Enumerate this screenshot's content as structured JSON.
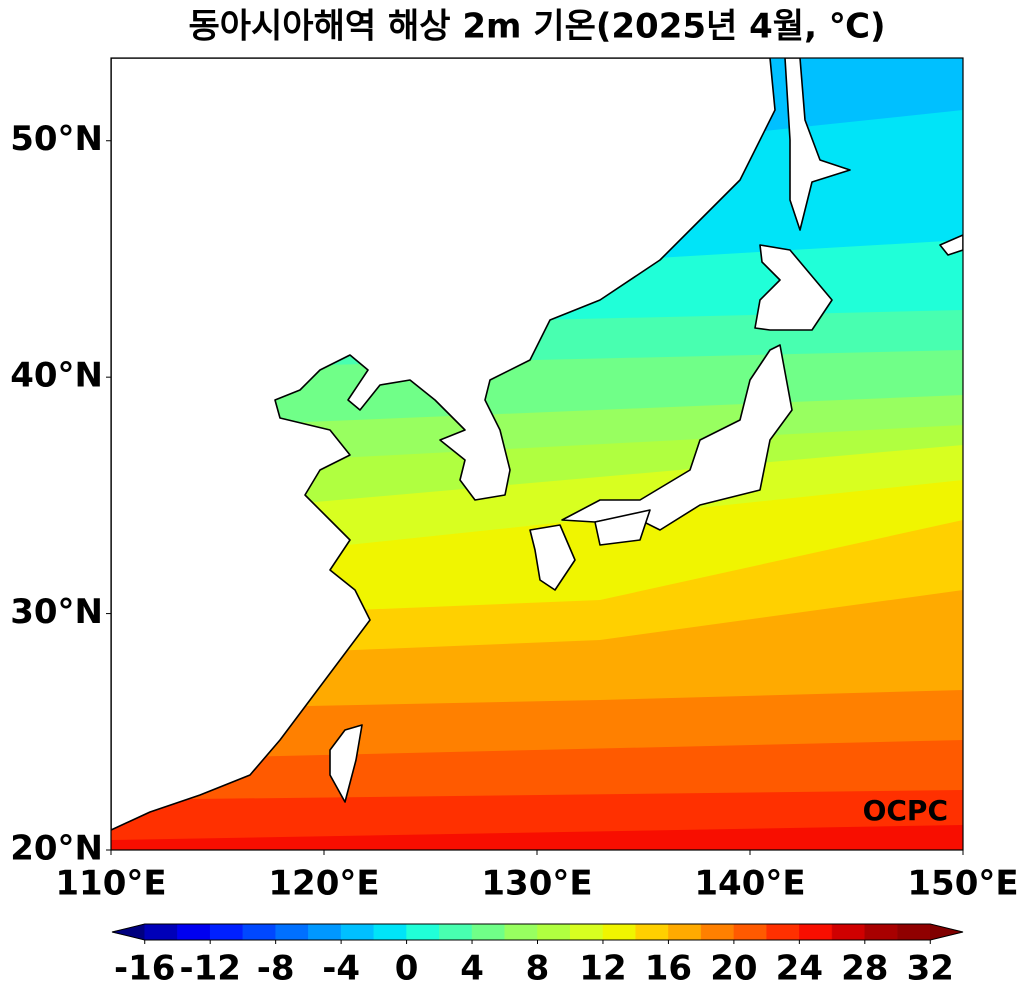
{
  "title": "동아시아해역 해상 2m 기온(2025년 4월, ℃)",
  "map": {
    "xlim": [
      110,
      150
    ],
    "ylim": [
      20,
      53.5
    ],
    "xticks": [
      {
        "value": 110,
        "label": "110°E"
      },
      {
        "value": 120,
        "label": "120°E"
      },
      {
        "value": 130,
        "label": "130°E"
      },
      {
        "value": 140,
        "label": "140°E"
      },
      {
        "value": 150,
        "label": "150°E"
      }
    ],
    "yticks": [
      {
        "value": 20,
        "label": "20°N"
      },
      {
        "value": 30,
        "label": "30°N"
      },
      {
        "value": 40,
        "label": "40°N"
      },
      {
        "value": 50,
        "label": "50°N"
      }
    ],
    "watermark": "OCPC"
  },
  "colorbar": {
    "lim": [
      -18,
      34
    ],
    "ticks": [
      -16,
      -12,
      -8,
      -4,
      0,
      4,
      8,
      12,
      16,
      20,
      24,
      28,
      32
    ],
    "colors": [
      "#00007f",
      "#0000b8",
      "#0000f0",
      "#0020ff",
      "#0048ff",
      "#0070ff",
      "#0098ff",
      "#00c0ff",
      "#00e4f8",
      "#20ffd8",
      "#48ffb0",
      "#70ff88",
      "#98ff60",
      "#b0ff40",
      "#d8ff20",
      "#f0f500",
      "#ffd000",
      "#ffaa00",
      "#ff8000",
      "#ff5a00",
      "#ff3000",
      "#f80e00",
      "#d00000",
      "#a80000",
      "#900000",
      "#800000"
    ]
  }
}
